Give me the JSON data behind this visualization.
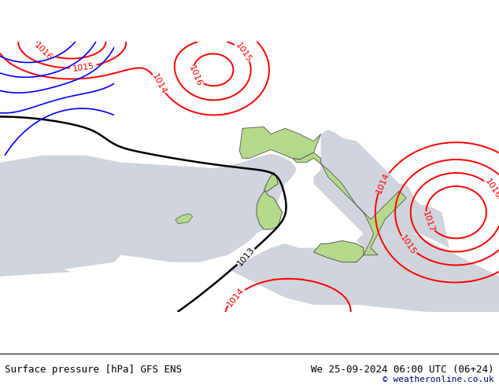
{
  "title_left": "Surface pressure [hPa] GFS ENS",
  "title_right": "We 25-09-2024 06:00 UTC (06+24)",
  "copyright": "© weatheronline.co.uk",
  "land_color": "#b4d98a",
  "sea_color": "#d0d4dc",
  "footer_bg": "#ffffff",
  "border_color": "#555555",
  "figsize": [
    6.34,
    4.9
  ],
  "dpi": 100,
  "xlim": [
    -10,
    25
  ],
  "ylim": [
    33,
    52
  ]
}
